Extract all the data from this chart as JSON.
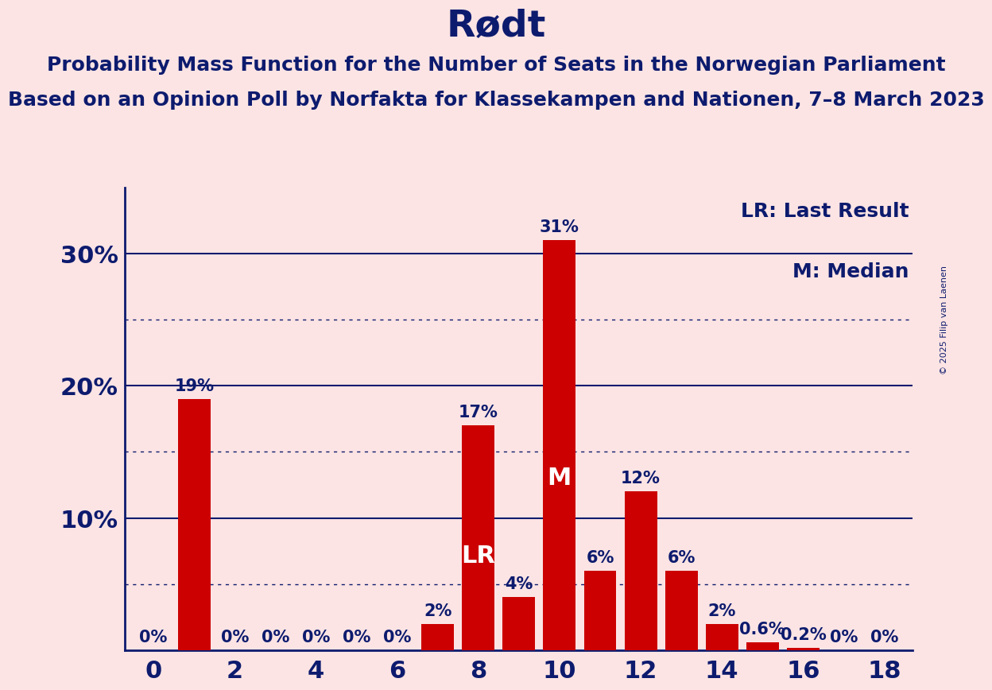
{
  "title": "Rødt",
  "subtitle1": "Probability Mass Function for the Number of Seats in the Norwegian Parliament",
  "subtitle2": "Based on an Opinion Poll by Norfakta for Klassekampen and Nationen, 7–8 March 2023",
  "copyright": "© 2025 Filip van Laenen",
  "seats": [
    0,
    1,
    2,
    3,
    4,
    5,
    6,
    7,
    8,
    9,
    10,
    11,
    12,
    13,
    14,
    15,
    16,
    17,
    18
  ],
  "probabilities": [
    0.0,
    19.0,
    0.0,
    0.0,
    0.0,
    0.0,
    0.0,
    2.0,
    17.0,
    4.0,
    31.0,
    6.0,
    12.0,
    6.0,
    2.0,
    0.6,
    0.2,
    0.0,
    0.0
  ],
  "bar_color": "#cc0000",
  "background_color": "#fce4e4",
  "text_color": "#0d1b6e",
  "LR_seat": 8,
  "M_seat": 10,
  "legend_LR": "LR: Last Result",
  "legend_M": "M: Median",
  "ylim": [
    0,
    35
  ],
  "solid_lines": [
    10,
    20,
    30
  ],
  "dotted_lines": [
    5,
    15,
    25
  ],
  "title_fontsize": 34,
  "subtitle_fontsize": 18,
  "tick_fontsize": 22,
  "bar_label_fontsize": 15,
  "legend_fontsize": 18,
  "lr_label_fontsize": 22,
  "m_label_fontsize": 22
}
